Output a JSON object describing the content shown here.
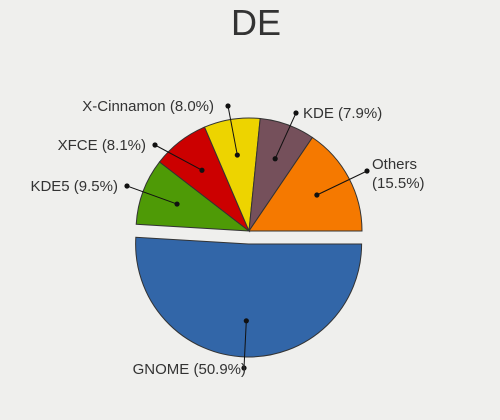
{
  "chart_data": {
    "type": "pie",
    "title": "DE",
    "slices": [
      {
        "label": "GNOME",
        "value": 50.9,
        "text": "GNOME (50.9%)",
        "color": "#3266a8",
        "exploded": true
      },
      {
        "label": "KDE5",
        "value": 9.5,
        "text": "KDE5 (9.5%)",
        "color": "#4e9a06",
        "exploded": false
      },
      {
        "label": "XFCE",
        "value": 8.1,
        "text": "XFCE (8.1%)",
        "color": "#cc0000",
        "exploded": false
      },
      {
        "label": "X-Cinnamon",
        "value": 8.0,
        "text": "X-Cinnamon (8.0%)",
        "color": "#edd400",
        "exploded": false
      },
      {
        "label": "KDE",
        "value": 7.9,
        "text": "KDE (7.9%)",
        "color": "#75505b",
        "exploded": false
      },
      {
        "label": "Others",
        "value": 15.5,
        "text": [
          "Others",
          "(15.5%)"
        ],
        "color": "#f57900",
        "exploded": false
      }
    ],
    "legend": "none"
  }
}
